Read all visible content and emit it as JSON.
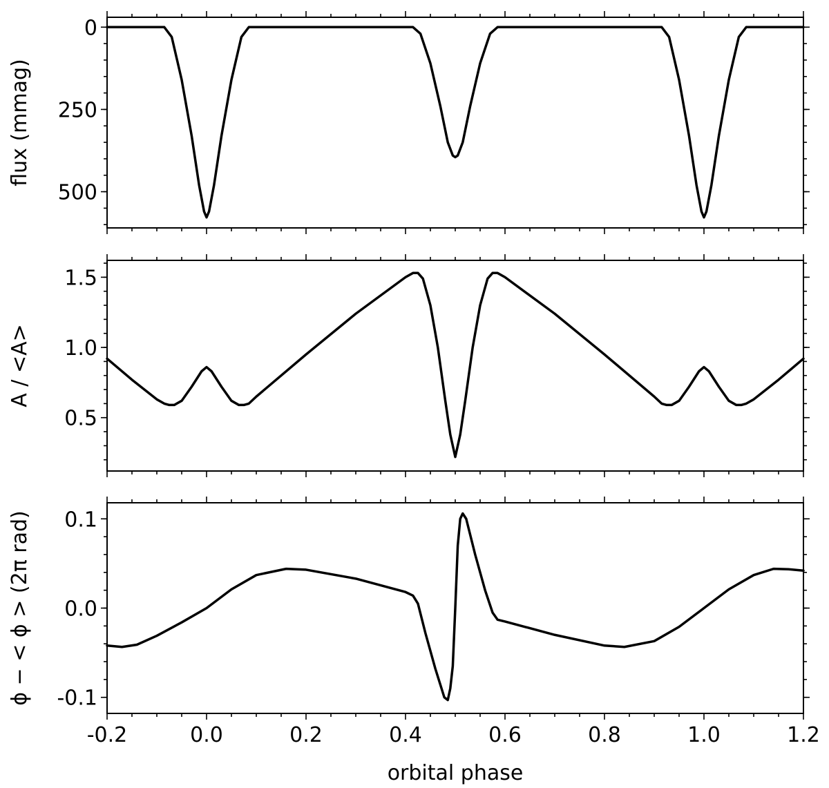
{
  "chart_data": [
    {
      "type": "line",
      "ylabel": "flux (mmag)",
      "xlabel": "",
      "xlim": [
        -0.2,
        1.2
      ],
      "ylim": [
        610,
        -30
      ],
      "y_inverted": true,
      "yticks": [
        0,
        250,
        500
      ],
      "ytick_labels": [
        "0",
        "250",
        "500"
      ],
      "x": [
        -0.2,
        -0.1,
        -0.085,
        -0.07,
        -0.05,
        -0.03,
        -0.015,
        -0.005,
        0.0,
        0.005,
        0.015,
        0.03,
        0.05,
        0.07,
        0.085,
        0.1,
        0.3,
        0.415,
        0.43,
        0.45,
        0.47,
        0.485,
        0.495,
        0.5,
        0.505,
        0.515,
        0.53,
        0.55,
        0.57,
        0.585,
        0.6,
        0.8,
        0.9,
        0.915,
        0.93,
        0.95,
        0.97,
        0.985,
        0.995,
        1.0,
        1.005,
        1.015,
        1.03,
        1.05,
        1.07,
        1.085,
        1.1,
        1.2
      ],
      "values": [
        0,
        0,
        0,
        30,
        160,
        330,
        480,
        560,
        578,
        560,
        480,
        330,
        160,
        30,
        0,
        0,
        0,
        0,
        20,
        110,
        240,
        350,
        390,
        395,
        390,
        350,
        240,
        110,
        20,
        0,
        0,
        0,
        0,
        0,
        30,
        160,
        330,
        480,
        560,
        578,
        560,
        480,
        330,
        160,
        30,
        0,
        0,
        0
      ]
    },
    {
      "type": "line",
      "ylabel": "A / <A>",
      "xlabel": "",
      "xlim": [
        -0.2,
        1.2
      ],
      "ylim": [
        0.12,
        1.62
      ],
      "yticks": [
        0.5,
        1.0,
        1.5
      ],
      "ytick_labels": [
        "0.5",
        "1.0",
        "1.5"
      ],
      "x": [
        -0.2,
        -0.15,
        -0.1,
        -0.085,
        -0.075,
        -0.065,
        -0.05,
        -0.03,
        -0.01,
        0.0,
        0.01,
        0.03,
        0.05,
        0.065,
        0.075,
        0.085,
        0.1,
        0.2,
        0.3,
        0.4,
        0.415,
        0.425,
        0.435,
        0.45,
        0.465,
        0.48,
        0.49,
        0.5,
        0.51,
        0.52,
        0.535,
        0.55,
        0.565,
        0.575,
        0.585,
        0.6,
        0.7,
        0.8,
        0.9,
        0.915,
        0.925,
        0.935,
        0.95,
        0.97,
        0.99,
        1.0,
        1.01,
        1.03,
        1.05,
        1.065,
        1.075,
        1.085,
        1.1,
        1.15,
        1.2
      ],
      "values": [
        0.92,
        0.77,
        0.63,
        0.6,
        0.59,
        0.59,
        0.62,
        0.72,
        0.83,
        0.86,
        0.83,
        0.72,
        0.62,
        0.59,
        0.59,
        0.6,
        0.65,
        0.95,
        1.24,
        1.5,
        1.53,
        1.53,
        1.49,
        1.3,
        1.0,
        0.62,
        0.38,
        0.22,
        0.38,
        0.62,
        1.0,
        1.3,
        1.49,
        1.53,
        1.53,
        1.5,
        1.24,
        0.95,
        0.65,
        0.6,
        0.59,
        0.59,
        0.62,
        0.72,
        0.83,
        0.86,
        0.83,
        0.72,
        0.62,
        0.59,
        0.59,
        0.6,
        0.63,
        0.77,
        0.92
      ]
    },
    {
      "type": "line",
      "ylabel": "ϕ − < ϕ >  (2π rad)",
      "xlabel": "orbital phase",
      "xlim": [
        -0.2,
        1.2
      ],
      "ylim": [
        -0.118,
        0.118
      ],
      "yticks": [
        -0.1,
        0.0,
        0.1
      ],
      "ytick_labels": [
        "-0.1",
        "0.0",
        "0.1"
      ],
      "xticks": [
        -0.2,
        0.0,
        0.2,
        0.4,
        0.6,
        0.8,
        1.0,
        1.2
      ],
      "xtick_labels": [
        "-0.2",
        "0.0",
        "0.2",
        "0.4",
        "0.6",
        "0.8",
        "1.0",
        "1.2"
      ],
      "x": [
        -0.2,
        -0.17,
        -0.14,
        -0.1,
        -0.05,
        0.0,
        0.05,
        0.1,
        0.16,
        0.2,
        0.3,
        0.4,
        0.415,
        0.425,
        0.44,
        0.46,
        0.478,
        0.485,
        0.49,
        0.495,
        0.5,
        0.505,
        0.51,
        0.515,
        0.522,
        0.54,
        0.56,
        0.575,
        0.585,
        0.6,
        0.7,
        0.8,
        0.84,
        0.9,
        0.95,
        1.0,
        1.05,
        1.1,
        1.14,
        1.17,
        1.2
      ],
      "values": [
        -0.042,
        -0.0435,
        -0.041,
        -0.031,
        -0.016,
        0.0,
        0.021,
        0.037,
        0.044,
        0.043,
        0.033,
        0.018,
        0.014,
        0.005,
        -0.028,
        -0.068,
        -0.1,
        -0.103,
        -0.09,
        -0.065,
        0.0,
        0.07,
        0.1,
        0.106,
        0.1,
        0.06,
        0.02,
        -0.005,
        -0.013,
        -0.015,
        -0.03,
        -0.042,
        -0.0435,
        -0.037,
        -0.021,
        0.0,
        0.021,
        0.037,
        0.044,
        0.0435,
        0.042
      ]
    }
  ]
}
